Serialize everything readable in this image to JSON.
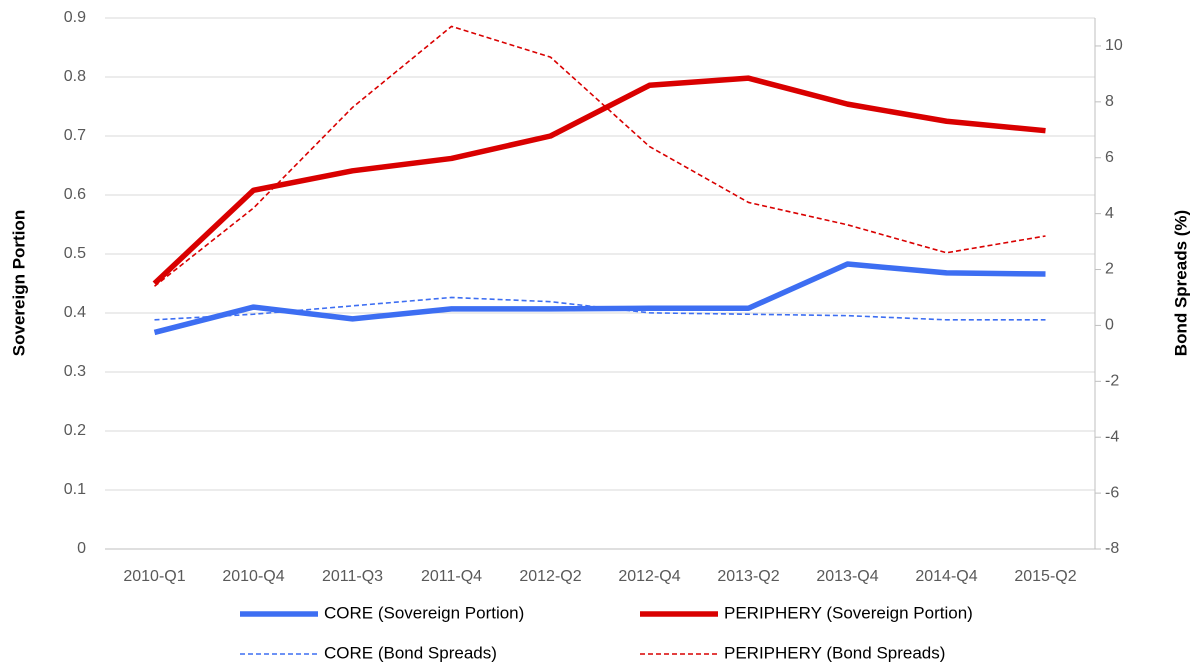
{
  "chart_data": {
    "type": "line",
    "categories": [
      "2010-Q1",
      "2010-Q4",
      "2011-Q3",
      "2011-Q4",
      "2012-Q2",
      "2012-Q4",
      "2013-Q2",
      "2013-Q4",
      "2014-Q4",
      "2015-Q2"
    ],
    "y_label": "Sovereign Portion",
    "y2_label": "Bond Spreads (%)",
    "ylim": [
      0,
      0.9
    ],
    "yticks": [
      0,
      0.1,
      0.2,
      0.3,
      0.4,
      0.5,
      0.6,
      0.7,
      0.8,
      0.9
    ],
    "y2lim": [
      -8,
      11
    ],
    "y2ticks": [
      -8,
      -6,
      -4,
      -2,
      0,
      2,
      4,
      6,
      8,
      10
    ],
    "grid": true,
    "legend": "bottom",
    "series": [
      {
        "name": "CORE (Sovereign Portion)",
        "color": "#3d6ef2",
        "line_style": "solid",
        "values": [
          0.367,
          0.41,
          0.39,
          0.407,
          0.407,
          0.408,
          0.408,
          0.483,
          0.468,
          0.466
        ]
      },
      {
        "name": "PERIPHERY (Sovereign Portion)",
        "color": "#d90000",
        "line_style": "solid",
        "values": [
          0.45,
          0.608,
          0.641,
          0.662,
          0.7,
          0.786,
          0.798,
          0.754,
          0.725,
          0.709
        ]
      },
      {
        "name": "CORE (Bond Spreads)",
        "color": "#3d6ef2",
        "line_style": "dashed",
        "axis": "y2",
        "values": [
          0.2,
          0.4,
          0.7,
          1.0,
          0.85,
          0.45,
          0.4,
          0.35,
          0.2,
          0.2
        ]
      },
      {
        "name": "PERIPHERY (Bond Spreads)",
        "color": "#d90000",
        "line_style": "dashed",
        "axis": "y2",
        "values": [
          1.4,
          4.2,
          7.8,
          10.7,
          9.6,
          6.4,
          4.4,
          3.6,
          2.6,
          3.2
        ]
      }
    ]
  }
}
